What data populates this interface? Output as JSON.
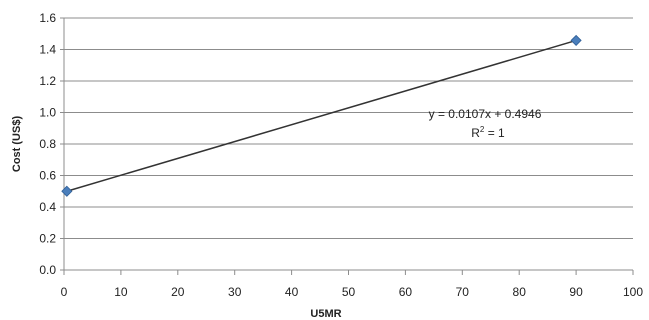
{
  "chart_data": {
    "type": "scatter",
    "title": "",
    "xlabel": "U5MR",
    "ylabel": "Cost (US$)",
    "xlim": [
      0,
      100
    ],
    "ylim": [
      0.0,
      1.6
    ],
    "xticks": [
      "0",
      "10",
      "20",
      "30",
      "40",
      "50",
      "60",
      "70",
      "80",
      "90",
      "100"
    ],
    "yticks": [
      "0.0",
      "0.2",
      "0.4",
      "0.6",
      "0.8",
      "1.0",
      "1.2",
      "1.4",
      "1.6"
    ],
    "grid": {
      "horizontal": true,
      "vertical": false
    },
    "series": [
      {
        "points": [
          {
            "x": 0.5,
            "y": 0.5
          },
          {
            "x": 90,
            "y": 1.4576
          }
        ],
        "marker": "diamond",
        "color": "#4a7ebb"
      }
    ],
    "trendline": {
      "type": "linear",
      "slope": 0.0107,
      "intercept": 0.4946,
      "x_range": [
        0.5,
        90
      ],
      "color": "#333333"
    },
    "annotations": {
      "equation": "y = 0.0107x + 0.4946",
      "r2_prefix": "R",
      "r2_exp": "2",
      "r2_suffix": " = 1"
    }
  }
}
